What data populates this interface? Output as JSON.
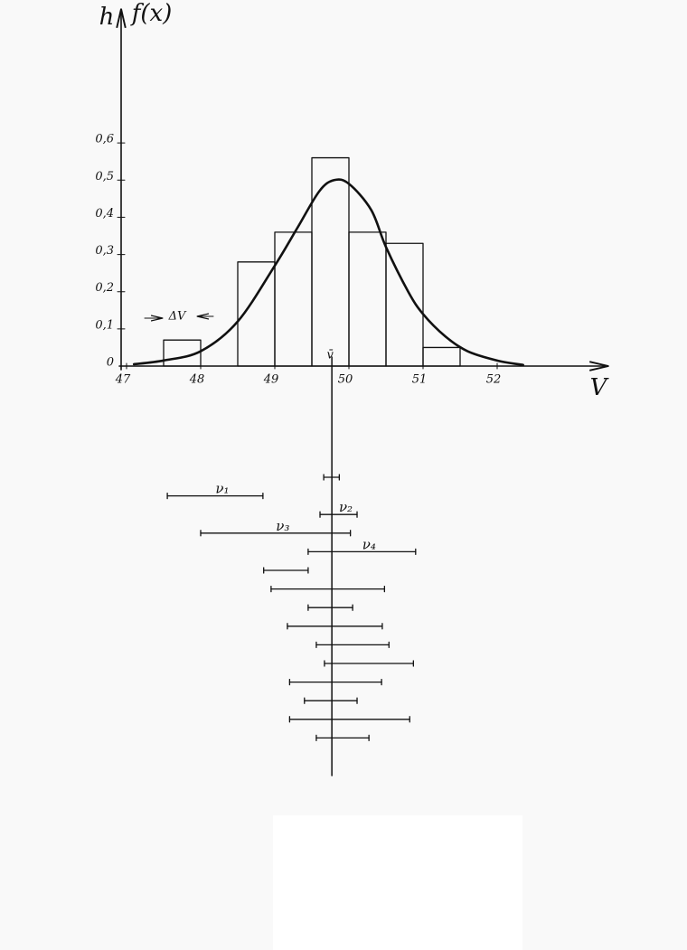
{
  "chart_data": [
    {
      "type": "histogram",
      "y_label": "h",
      "y2_label": "f(x)",
      "x_label": "V",
      "annotation": "ΔV",
      "bins": [
        47.5,
        48,
        48.5,
        49,
        49.5,
        50,
        50.5,
        51,
        51.5
      ],
      "values": [
        0.07,
        0,
        0.28,
        0.36,
        0.56,
        0.36,
        0.33,
        0.05
      ],
      "curve": {
        "x": [
          47.1,
          47.5,
          48,
          48.5,
          49,
          49.3,
          49.6,
          49.8,
          50,
          50.3,
          50.5,
          50.8,
          51,
          51.3,
          51.6,
          52,
          52.35
        ],
        "y": [
          0.005,
          0.015,
          0.04,
          0.12,
          0.27,
          0.37,
          0.47,
          0.5,
          0.49,
          0.42,
          0.32,
          0.2,
          0.14,
          0.08,
          0.04,
          0.015,
          0.003
        ]
      },
      "xlim": [
        47,
        53.5
      ],
      "ylim": [
        0,
        0.96
      ],
      "xticks": [
        47,
        48,
        49,
        50,
        51,
        52
      ],
      "yticks": [
        {
          "value": 0,
          "label": "0"
        },
        {
          "value": 0.1,
          "label": "0,1"
        },
        {
          "value": 0.2,
          "label": "0,2"
        },
        {
          "value": 0.3,
          "label": "0,3"
        },
        {
          "value": 0.4,
          "label": "0,4"
        },
        {
          "value": 0.5,
          "label": "0,5"
        },
        {
          "value": 0.6,
          "label": "0,6"
        }
      ]
    },
    {
      "type": "interval",
      "mean": {
        "value": 49.77,
        "label": "v̄"
      },
      "xlim": [
        47,
        53.5
      ],
      "intervals": [
        {
          "low": 49.66,
          "high": 49.87
        },
        {
          "low": 47.55,
          "high": 48.84,
          "label": "ν₁"
        },
        {
          "low": 49.61,
          "high": 50.11,
          "label": "ν₂"
        },
        {
          "low": 48.0,
          "high": 50.02,
          "label": "ν₃"
        },
        {
          "low": 49.45,
          "high": 50.9,
          "label": "ν₄"
        },
        {
          "low": 48.85,
          "high": 49.45
        },
        {
          "low": 48.95,
          "high": 50.48
        },
        {
          "low": 49.45,
          "high": 50.05
        },
        {
          "low": 49.17,
          "high": 50.45
        },
        {
          "low": 49.56,
          "high": 50.54
        },
        {
          "low": 49.67,
          "high": 50.87
        },
        {
          "low": 49.2,
          "high": 50.44
        },
        {
          "low": 49.4,
          "high": 50.11
        },
        {
          "low": 49.2,
          "high": 50.82
        },
        {
          "low": 49.56,
          "high": 50.27
        }
      ]
    }
  ]
}
